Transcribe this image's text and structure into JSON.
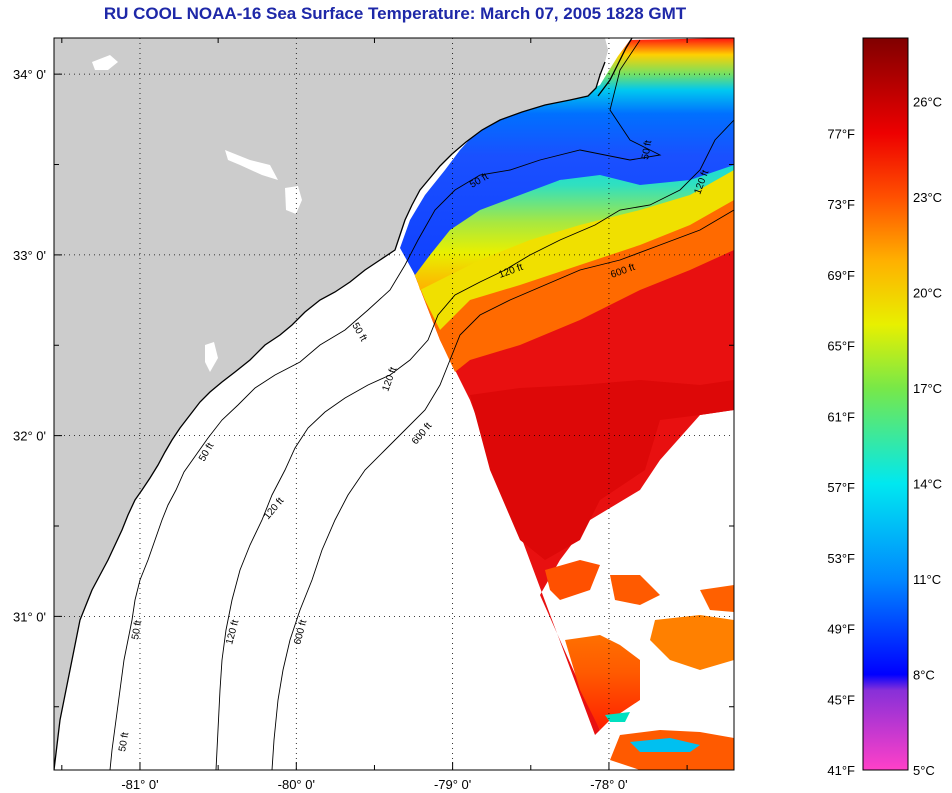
{
  "title": "RU COOL  NOAA-16  Sea Surface Temperature:  March 07, 2005 1828 GMT",
  "map": {
    "lon_range": [
      -81.55,
      -77.2
    ],
    "lat_range": [
      30.15,
      34.2
    ],
    "lon_ticks": [
      {
        "value": -81,
        "label": "-81° 0'"
      },
      {
        "value": -80,
        "label": "-80° 0'"
      },
      {
        "value": -79,
        "label": "-79° 0'"
      },
      {
        "value": -78,
        "label": "-78° 0'"
      }
    ],
    "lat_ticks": [
      {
        "value": 34,
        "label": "34° 0'"
      },
      {
        "value": 33,
        "label": "33° 0'"
      },
      {
        "value": 32,
        "label": "32° 0'"
      },
      {
        "value": 31,
        "label": "31° 0'"
      }
    ],
    "gridlines": "dotted",
    "contour_labels": [
      "50 ft",
      "120 ft",
      "600 ft"
    ],
    "colors": {
      "land": "#cccccc",
      "no_data": "#ffffff",
      "contour": "#000000"
    }
  },
  "colorbar": {
    "celsius_range": [
      5,
      28
    ],
    "celsius_labels": [
      "26°C",
      "23°C",
      "20°C",
      "17°C",
      "14°C",
      "11°C",
      "8°C",
      "5°C"
    ],
    "fahrenheit_labels": [
      "77°F",
      "73°F",
      "69°F",
      "65°F",
      "61°F",
      "57°F",
      "53°F",
      "49°F",
      "45°F",
      "41°F"
    ],
    "stops": [
      {
        "c": 5,
        "color": "#ff40c8"
      },
      {
        "c": 7.5,
        "color": "#8830d8"
      },
      {
        "c": 8,
        "color": "#0000ff"
      },
      {
        "c": 11,
        "color": "#0088ff"
      },
      {
        "c": 14,
        "color": "#00e8f0"
      },
      {
        "c": 17,
        "color": "#78e848"
      },
      {
        "c": 19,
        "color": "#e8f000"
      },
      {
        "c": 21,
        "color": "#ffb000"
      },
      {
        "c": 23,
        "color": "#ff5000"
      },
      {
        "c": 25,
        "color": "#ee0000"
      },
      {
        "c": 28,
        "color": "#800000"
      }
    ]
  }
}
